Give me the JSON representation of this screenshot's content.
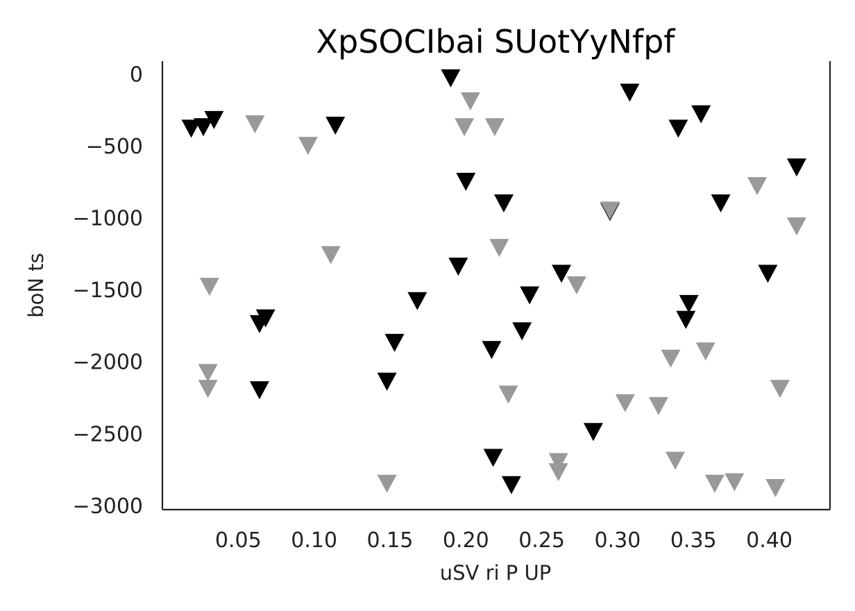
{
  "chart_data": {
    "type": "scatter",
    "title": "XpSOCIbai SUotYyNfpf",
    "xlabel": "uSV ri P UP",
    "ylabel": "boN ts",
    "xlim": [
      0.0,
      0.44
    ],
    "ylim": [
      -3030,
      90
    ],
    "xticks": [
      0.05,
      0.1,
      0.15,
      0.2,
      0.25,
      0.3,
      0.35,
      0.4
    ],
    "xtick_labels": [
      "0.05",
      "0.10",
      "0.15",
      "0.20",
      "0.25",
      "0.30",
      "0.35",
      "0.40"
    ],
    "yticks": [
      0,
      -500,
      -1000,
      -1500,
      -2000,
      -2500,
      -3000
    ],
    "ytick_labels": [
      "0",
      "−500",
      "−1000",
      "−1500",
      "−2000",
      "−2500",
      "−3000"
    ],
    "grid": false,
    "marker": "triangle-down",
    "series": [
      {
        "color": "#000000",
        "points": [
          [
            0.019,
            -380
          ],
          [
            0.027,
            -370
          ],
          [
            0.034,
            -320
          ],
          [
            0.114,
            -360
          ],
          [
            0.064,
            -1740
          ],
          [
            0.068,
            -1700
          ],
          [
            0.064,
            -2200
          ],
          [
            0.153,
            -1870
          ],
          [
            0.168,
            -1580
          ],
          [
            0.148,
            -2140
          ],
          [
            0.19,
            -30
          ],
          [
            0.2,
            -750
          ],
          [
            0.195,
            -1340
          ],
          [
            0.225,
            -900
          ],
          [
            0.217,
            -1920
          ],
          [
            0.237,
            -1790
          ],
          [
            0.242,
            -1540
          ],
          [
            0.218,
            -2670
          ],
          [
            0.23,
            -2860
          ],
          [
            0.263,
            -1390
          ],
          [
            0.284,
            -2490
          ],
          [
            0.295,
            -960
          ],
          [
            0.308,
            -130
          ],
          [
            0.34,
            -380
          ],
          [
            0.355,
            -280
          ],
          [
            0.368,
            -900
          ],
          [
            0.347,
            -1600
          ],
          [
            0.345,
            -1710
          ],
          [
            0.399,
            -1390
          ],
          [
            0.418,
            -650
          ]
        ]
      },
      {
        "color": "#999999",
        "points": [
          [
            0.031,
            -1480
          ],
          [
            0.03,
            -2080
          ],
          [
            0.03,
            -2190
          ],
          [
            0.061,
            -350
          ],
          [
            0.096,
            -500
          ],
          [
            0.111,
            -1260
          ],
          [
            0.148,
            -2850
          ],
          [
            0.203,
            -190
          ],
          [
            0.199,
            -370
          ],
          [
            0.219,
            -370
          ],
          [
            0.222,
            -1210
          ],
          [
            0.228,
            -2230
          ],
          [
            0.261,
            -2700
          ],
          [
            0.261,
            -2770
          ],
          [
            0.273,
            -1470
          ],
          [
            0.295,
            -950
          ],
          [
            0.305,
            -2290
          ],
          [
            0.327,
            -2310
          ],
          [
            0.335,
            -1980
          ],
          [
            0.338,
            -2690
          ],
          [
            0.358,
            -1930
          ],
          [
            0.364,
            -2850
          ],
          [
            0.377,
            -2840
          ],
          [
            0.392,
            -780
          ],
          [
            0.404,
            -2880
          ],
          [
            0.407,
            -2190
          ],
          [
            0.418,
            -1060
          ]
        ]
      }
    ]
  }
}
